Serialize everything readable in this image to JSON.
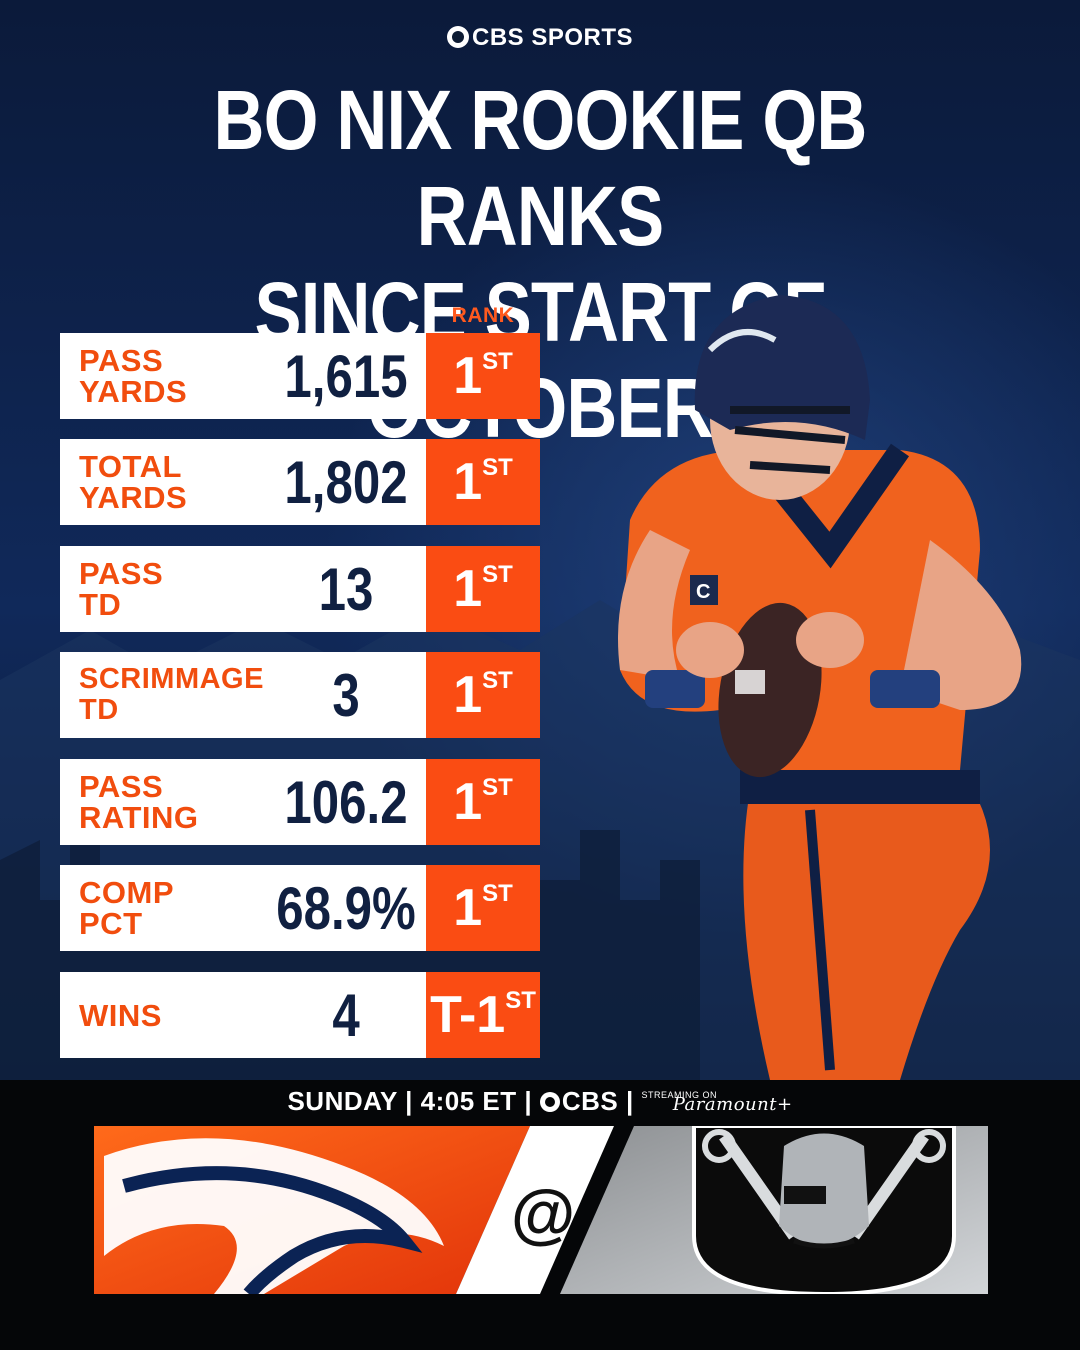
{
  "brand": "CBS SPORTS",
  "title_line1": "BO NIX ROOKIE QB RANKS",
  "title_line2": "SINCE START OF OCTOBER",
  "rank_header": "RANK",
  "rows": [
    {
      "label": "PASS\nYARDS",
      "value": "1,615",
      "rank": "1",
      "suffix": "ST"
    },
    {
      "label": "TOTAL\nYARDS",
      "value": "1,802",
      "rank": "1",
      "suffix": "ST"
    },
    {
      "label": "PASS\nTD",
      "value": "13",
      "rank": "1",
      "suffix": "ST"
    },
    {
      "label": "SCRIMMAGE\nTD",
      "value": "3",
      "rank": "1",
      "suffix": "ST"
    },
    {
      "label": "PASS\nRATING",
      "value": "106.2",
      "rank": "1",
      "suffix": "ST"
    },
    {
      "label": "COMP\nPCT",
      "value": "68.9%",
      "rank": "1",
      "suffix": "ST"
    },
    {
      "label": "WINS",
      "value": "4",
      "rank": "T-1",
      "suffix": "ST"
    }
  ],
  "game": {
    "day": "SUNDAY",
    "time": "4:05 ET",
    "network": "CBS",
    "streaming_tag": "STREAMING ON",
    "streaming": "Paramount+",
    "at": "@"
  },
  "colors": {
    "orange": "#fa4c13",
    "navy": "#102041",
    "white": "#ffffff"
  }
}
